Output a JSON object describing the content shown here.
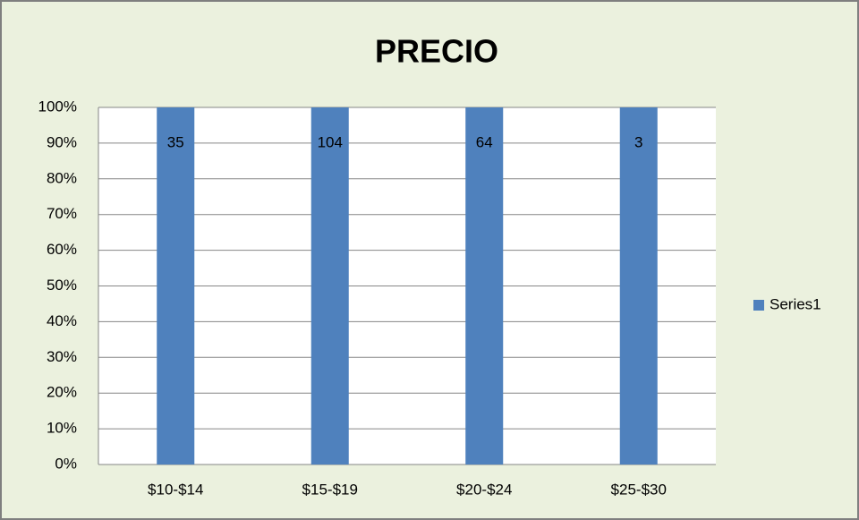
{
  "chart_data": {
    "type": "bar",
    "stacking": "percent",
    "title": "PRECIO",
    "categories": [
      "$10-$14",
      "$15-$19",
      "$20-$24",
      "$25-$30"
    ],
    "series": [
      {
        "name": "Series1",
        "color": "#4f81bd",
        "values": [
          35,
          104,
          64,
          3
        ]
      }
    ],
    "ylim": [
      0,
      100
    ],
    "yticks": [
      {
        "value": 0,
        "label": "0%"
      },
      {
        "value": 10,
        "label": "10%"
      },
      {
        "value": 20,
        "label": "20%"
      },
      {
        "value": 30,
        "label": "30%"
      },
      {
        "value": 40,
        "label": "40%"
      },
      {
        "value": 50,
        "label": "50%"
      },
      {
        "value": 60,
        "label": "60%"
      },
      {
        "value": 70,
        "label": "70%"
      },
      {
        "value": 80,
        "label": "80%"
      },
      {
        "value": 90,
        "label": "90%"
      },
      {
        "value": 100,
        "label": "100%"
      }
    ],
    "grid": true,
    "legend": "right",
    "background": "#ebf1de"
  }
}
